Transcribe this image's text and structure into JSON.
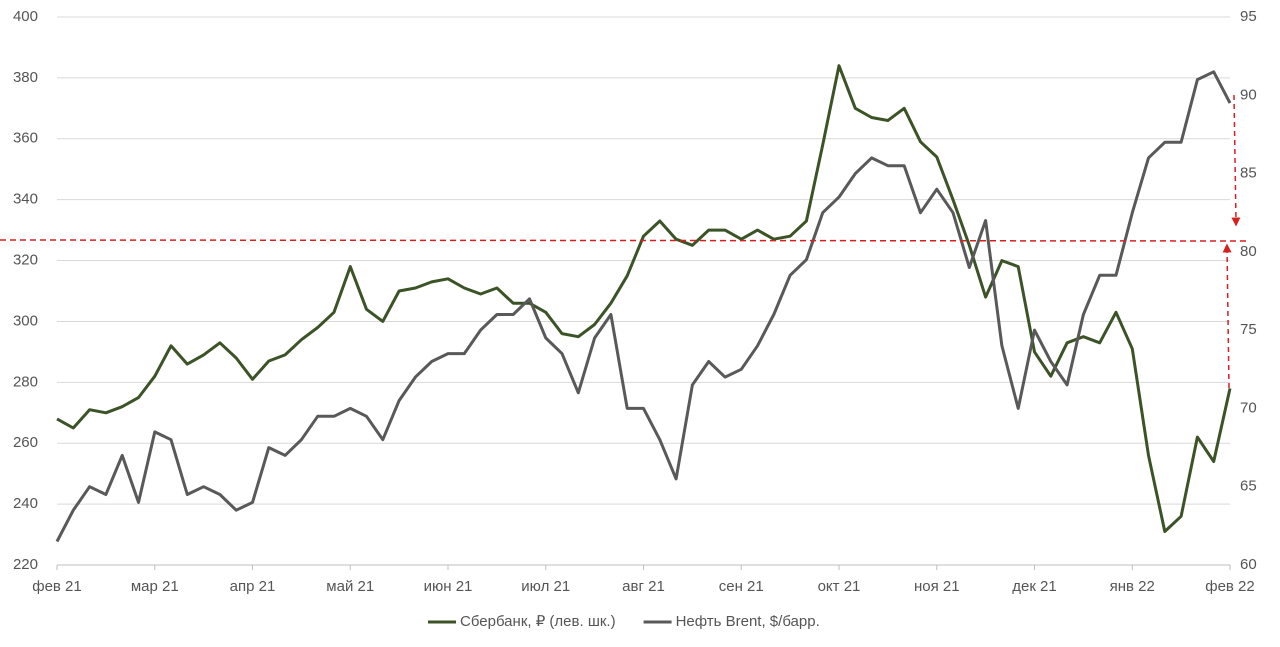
{
  "chart_data": {
    "type": "line",
    "categories": [
      "фев 21",
      null,
      null,
      null,
      null,
      null,
      "мар 21",
      null,
      null,
      null,
      null,
      null,
      "апр 21",
      null,
      null,
      null,
      null,
      null,
      "май 21",
      null,
      null,
      null,
      null,
      null,
      "июн 21",
      null,
      null,
      null,
      null,
      null,
      "июл 21",
      null,
      null,
      null,
      null,
      null,
      "авг 21",
      null,
      null,
      null,
      null,
      null,
      "сен 21",
      null,
      null,
      null,
      null,
      null,
      "окт 21",
      null,
      null,
      null,
      null,
      null,
      "ноя 21",
      null,
      null,
      null,
      null,
      null,
      "дек 21",
      null,
      null,
      null,
      null,
      null,
      "янв 22",
      null,
      null,
      null,
      null,
      null,
      "фев 22"
    ],
    "series": [
      {
        "name": "Сбербанк, ₽ (лев. шк.)",
        "color": "#3b5326",
        "values": [
          268,
          265,
          271,
          270,
          272,
          275,
          282,
          292,
          286,
          289,
          293,
          288,
          281,
          287,
          289,
          294,
          298,
          303,
          318,
          304,
          300,
          310,
          311,
          313,
          314,
          311,
          309,
          311,
          306,
          306,
          303,
          296,
          295,
          299,
          306,
          315,
          328,
          333,
          327,
          325,
          330,
          330,
          327,
          330,
          327,
          328,
          333,
          358,
          384,
          370,
          367,
          366,
          370,
          359,
          354,
          340,
          325,
          308,
          320,
          318,
          290,
          282,
          293,
          295,
          293,
          303,
          291,
          256,
          231,
          236,
          262,
          254,
          278
        ]
      },
      {
        "name": "Нефть Brent, $/барр.",
        "color": "#595959",
        "axis": "y2",
        "values": [
          61.5,
          63.5,
          65,
          64.5,
          67,
          64,
          68.5,
          68,
          64.5,
          65,
          64.5,
          63.5,
          64,
          67.5,
          67,
          68,
          69.5,
          69.5,
          70,
          69.5,
          68,
          70.5,
          72,
          73,
          73.5,
          73.5,
          75,
          76,
          76,
          77,
          74.5,
          73.5,
          71,
          74.5,
          76,
          70,
          70,
          68,
          65.5,
          71.5,
          73,
          72,
          72.5,
          74,
          76,
          78.5,
          79.5,
          82.5,
          83.5,
          85,
          86,
          85.5,
          85.5,
          82.5,
          84,
          82.5,
          79,
          82,
          74,
          70,
          75,
          73,
          71.5,
          76,
          78.5,
          78.5,
          82.5,
          86,
          87,
          87,
          91,
          91.5,
          89.5
        ]
      }
    ],
    "ylim": [
      220,
      400
    ],
    "yticks": [
      220,
      240,
      260,
      280,
      300,
      320,
      340,
      360,
      380,
      400
    ],
    "y2lim": [
      60,
      95
    ],
    "y2ticks": [
      60,
      65,
      70,
      75,
      80,
      85,
      90,
      95
    ],
    "grid": true,
    "legend": "bottom"
  }
}
